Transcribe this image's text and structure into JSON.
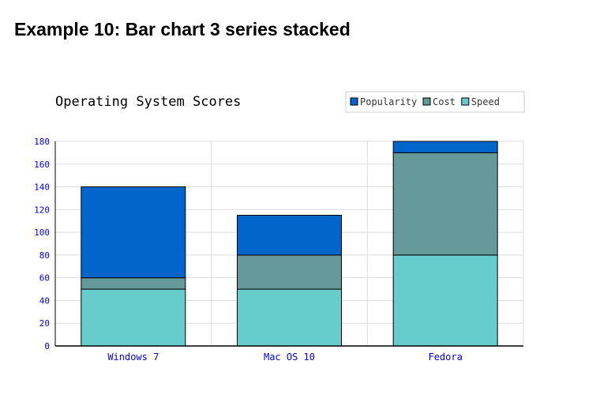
{
  "page": {
    "heading": "Example 10: Bar chart 3 series stacked"
  },
  "chart_data": {
    "type": "bar",
    "stacked": true,
    "title": "Operating System Scores",
    "xlabel": "",
    "ylabel": "",
    "categories": [
      "Windows 7",
      "Mac OS 10",
      "Fedora"
    ],
    "series": [
      {
        "name": "Speed",
        "values": [
          50,
          50,
          80
        ],
        "color": "#66cccc"
      },
      {
        "name": "Cost",
        "values": [
          10,
          30,
          90
        ],
        "color": "#669999"
      },
      {
        "name": "Popularity",
        "values": [
          80,
          35,
          10
        ],
        "color": "#0066cc"
      }
    ],
    "legend_order": [
      "Popularity",
      "Cost",
      "Speed"
    ],
    "legend_position": "top-right",
    "ylim": [
      0,
      180
    ],
    "yticks": [
      0,
      20,
      40,
      60,
      80,
      100,
      120,
      140,
      160,
      180
    ],
    "grid": true,
    "colors": {
      "axis_label": "#0000ee",
      "grid": "#dddddd",
      "axis": "#000000",
      "bar_border": "#000000"
    }
  }
}
